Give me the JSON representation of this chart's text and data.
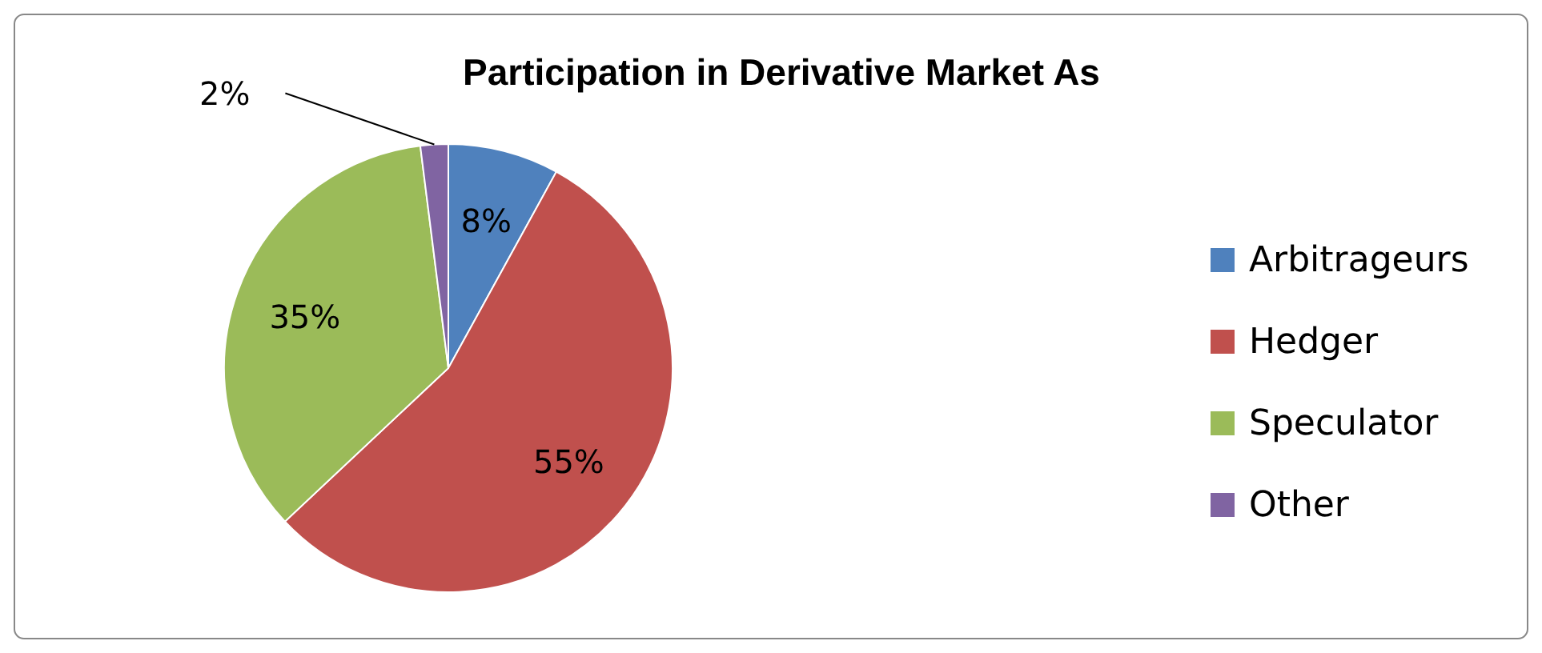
{
  "chart_data": {
    "type": "pie",
    "title": "Participation in Derivative Market As",
    "categories": [
      "Arbitrageurs",
      "Hedger",
      "Speculator",
      "Other"
    ],
    "values": [
      8,
      55,
      35,
      2
    ],
    "colors": [
      "#4f81bd",
      "#c0504d",
      "#9bbb59",
      "#8064a2"
    ],
    "value_labels": [
      "8%",
      "55%",
      "35%",
      "2%"
    ],
    "legend": "right"
  }
}
